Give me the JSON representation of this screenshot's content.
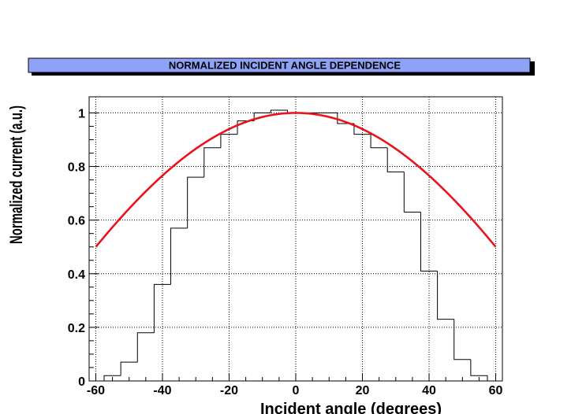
{
  "chart_data": {
    "type": "line",
    "title": "NORMALIZED INCIDENT ANGLE DEPENDENCE",
    "xlabel": "Incident angle (degrees)",
    "ylabel": "Normalized current (a.u.)",
    "xlim": [
      -62,
      62
    ],
    "ylim": [
      0,
      1.06
    ],
    "grid": true,
    "x_ticks": [
      -60,
      -40,
      -20,
      0,
      20,
      40,
      60
    ],
    "x_tick_labels": [
      "-60",
      "-40",
      "-20",
      "0",
      "20",
      "40",
      "60"
    ],
    "y_ticks": [
      0,
      0.2,
      0.4,
      0.6,
      0.8,
      1
    ],
    "y_tick_labels": [
      "0",
      "0.2",
      "0.4",
      "0.6",
      "0.8",
      "1"
    ],
    "series": [
      {
        "kind": "histogram",
        "color": "#000000",
        "bin_edges": [
          -60,
          -57.5,
          -52.5,
          -47.5,
          -42.5,
          -37.5,
          -32.5,
          -27.5,
          -22.5,
          -17.5,
          -12.5,
          -7.5,
          -2.5,
          2.5,
          7.5,
          12.5,
          17.5,
          22.5,
          27.5,
          32.5,
          37.5,
          42.5,
          47.5,
          52.5,
          57.5
        ],
        "values": [
          0,
          0.02,
          0.07,
          0.18,
          0.36,
          0.57,
          0.76,
          0.87,
          0.92,
          0.97,
          1.0,
          1.01,
          1.0,
          1.0,
          1.0,
          0.96,
          0.92,
          0.87,
          0.78,
          0.63,
          0.41,
          0.23,
          0.08,
          0.02
        ]
      },
      {
        "kind": "curve",
        "color": "#e8141c",
        "function": "cos(x)",
        "x_range": [
          -60,
          60
        ]
      }
    ]
  },
  "colors": {
    "title_bar": "#8ea3f7",
    "curve": "#e8141c",
    "grid": "#000000"
  }
}
